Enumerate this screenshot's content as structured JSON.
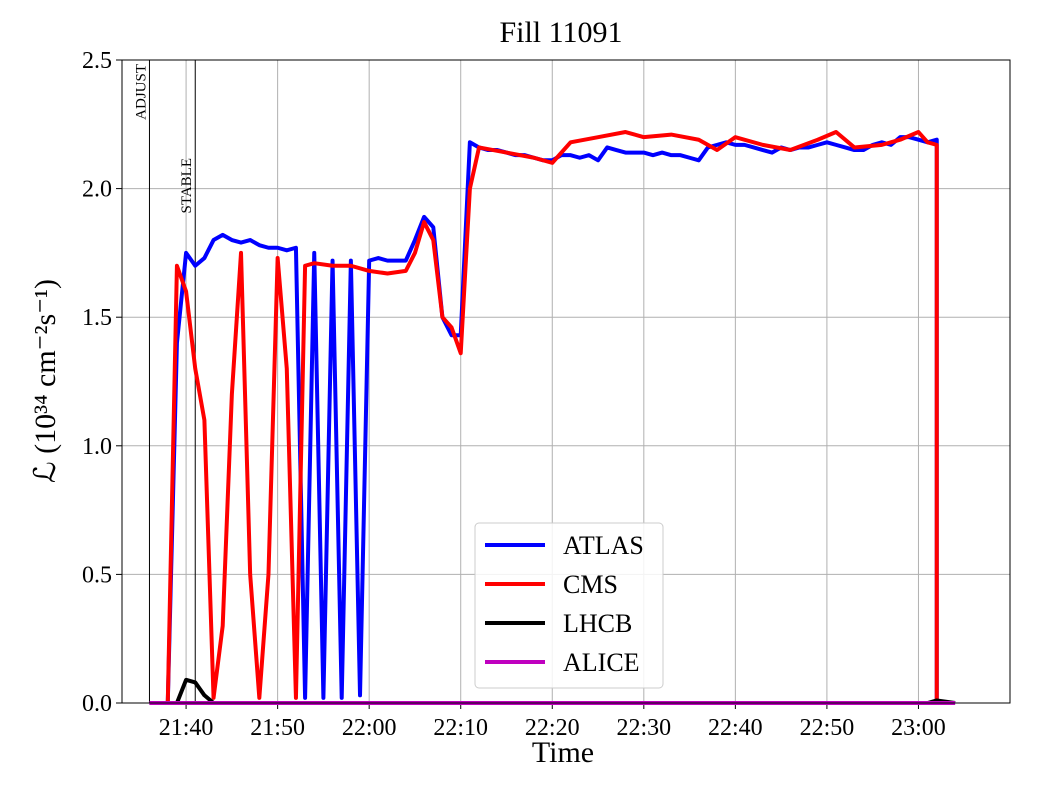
{
  "chart_data": {
    "type": "line",
    "title": "Fill 11091",
    "x_label": "Time",
    "y_label": "ℒ (10³⁴ cm⁻²s⁻¹)",
    "xlim": [
      "21:33",
      "23:10"
    ],
    "xticks": [
      "21:40",
      "21:50",
      "22:00",
      "22:10",
      "22:20",
      "22:30",
      "22:40",
      "22:50",
      "23:00"
    ],
    "ylim": [
      0,
      2.5
    ],
    "yticks": [
      {
        "value": 0,
        "label": "0.0"
      },
      {
        "value": 0.5,
        "label": "0.5"
      },
      {
        "value": 1,
        "label": "1.0"
      },
      {
        "value": 1.5,
        "label": "1.5"
      },
      {
        "value": 2,
        "label": "2.0"
      },
      {
        "value": 2.5,
        "label": "2.5"
      }
    ],
    "grid": true,
    "legend": "lower center",
    "annotations": [
      {
        "x": "21:36",
        "text": "ADJUST"
      },
      {
        "x": "21:41",
        "text": "STABLE"
      }
    ],
    "series": [
      {
        "name": "ATLAS",
        "color": "#0000ff",
        "x": [
          "21:36",
          "21:38",
          "21:39",
          "21:40",
          "21:41",
          "21:42",
          "21:43",
          "21:44",
          "21:45",
          "21:46",
          "21:47",
          "21:48",
          "21:49",
          "21:50",
          "21:51",
          "21:52",
          "21:53",
          "21:54",
          "21:55",
          "21:56",
          "21:57",
          "21:58",
          "21:59",
          "22:00",
          "22:01",
          "22:02",
          "22:03",
          "22:04",
          "22:05",
          "22:06",
          "22:07",
          "22:08",
          "22:09",
          "22:10",
          "22:11",
          "22:12",
          "22:13",
          "22:14",
          "22:15",
          "22:16",
          "22:17",
          "22:18",
          "22:19",
          "22:20",
          "22:21",
          "22:22",
          "22:23",
          "22:24",
          "22:25",
          "22:26",
          "22:27",
          "22:28",
          "22:29",
          "22:30",
          "22:31",
          "22:32",
          "22:33",
          "22:34",
          "22:35",
          "22:36",
          "22:37",
          "22:38",
          "22:39",
          "22:40",
          "22:41",
          "22:42",
          "22:43",
          "22:44",
          "22:45",
          "22:46",
          "22:47",
          "22:48",
          "22:49",
          "22:50",
          "22:51",
          "22:52",
          "22:53",
          "22:54",
          "22:55",
          "22:56",
          "22:57",
          "22:58",
          "22:59",
          "23:00",
          "23:01",
          "23:02",
          "23:02",
          "23:04"
        ],
        "values": [
          0,
          0,
          1.4,
          1.75,
          1.7,
          1.73,
          1.8,
          1.82,
          1.8,
          1.79,
          1.8,
          1.78,
          1.77,
          1.77,
          1.76,
          1.77,
          0.02,
          1.75,
          0.02,
          1.72,
          0.02,
          1.72,
          0.03,
          1.72,
          1.73,
          1.72,
          1.72,
          1.72,
          1.8,
          1.89,
          1.85,
          1.5,
          1.43,
          1.43,
          2.18,
          2.16,
          2.15,
          2.15,
          2.14,
          2.13,
          2.13,
          2.12,
          2.11,
          2.11,
          2.13,
          2.13,
          2.12,
          2.13,
          2.11,
          2.16,
          2.15,
          2.14,
          2.14,
          2.14,
          2.13,
          2.14,
          2.13,
          2.13,
          2.12,
          2.11,
          2.16,
          2.17,
          2.18,
          2.17,
          2.17,
          2.16,
          2.15,
          2.14,
          2.16,
          2.15,
          2.16,
          2.16,
          2.17,
          2.18,
          2.17,
          2.16,
          2.15,
          2.15,
          2.17,
          2.18,
          2.17,
          2.2,
          2.2,
          2.19,
          2.18,
          2.19,
          0,
          0
        ]
      },
      {
        "name": "CMS",
        "color": "#ff0000",
        "x": [
          "21:36",
          "21:38",
          "21:39",
          "21:40",
          "21:41",
          "21:42",
          "21:43",
          "21:44",
          "21:45",
          "21:46",
          "21:47",
          "21:48",
          "21:49",
          "21:50",
          "21:51",
          "21:52",
          "21:53",
          "21:54",
          "21:56",
          "21:58",
          "22:00",
          "22:02",
          "22:04",
          "22:05",
          "22:06",
          "22:07",
          "22:08",
          "22:09",
          "22:10",
          "22:11",
          "22:12",
          "22:15",
          "22:18",
          "22:20",
          "22:22",
          "22:25",
          "22:28",
          "22:30",
          "22:33",
          "22:36",
          "22:38",
          "22:40",
          "22:43",
          "22:46",
          "22:49",
          "22:51",
          "22:53",
          "22:56",
          "22:58",
          "23:00",
          "23:01",
          "23:02",
          "23:02"
        ],
        "values": [
          0,
          0,
          1.7,
          1.6,
          1.3,
          1.1,
          0.02,
          0.3,
          1.2,
          1.75,
          0.5,
          0.02,
          0.5,
          1.73,
          1.3,
          0.02,
          1.7,
          1.71,
          1.7,
          1.7,
          1.68,
          1.67,
          1.68,
          1.75,
          1.87,
          1.8,
          1.5,
          1.46,
          1.36,
          2.0,
          2.16,
          2.14,
          2.12,
          2.1,
          2.18,
          2.2,
          2.22,
          2.2,
          2.21,
          2.19,
          2.15,
          2.2,
          2.17,
          2.15,
          2.19,
          2.22,
          2.16,
          2.17,
          2.19,
          2.22,
          2.18,
          2.17,
          0
        ]
      },
      {
        "name": "LHCB",
        "color": "#000000",
        "x": [
          "21:36",
          "21:39",
          "21:40",
          "21:41",
          "21:42",
          "21:43",
          "23:01",
          "23:02",
          "23:04"
        ],
        "values": [
          0,
          0,
          0.09,
          0.08,
          0.03,
          0,
          0,
          0.01,
          0
        ]
      },
      {
        "name": "ALICE",
        "color": "#bf00bf",
        "x": [
          "21:36",
          "23:04"
        ],
        "values": [
          0,
          0
        ]
      }
    ]
  }
}
